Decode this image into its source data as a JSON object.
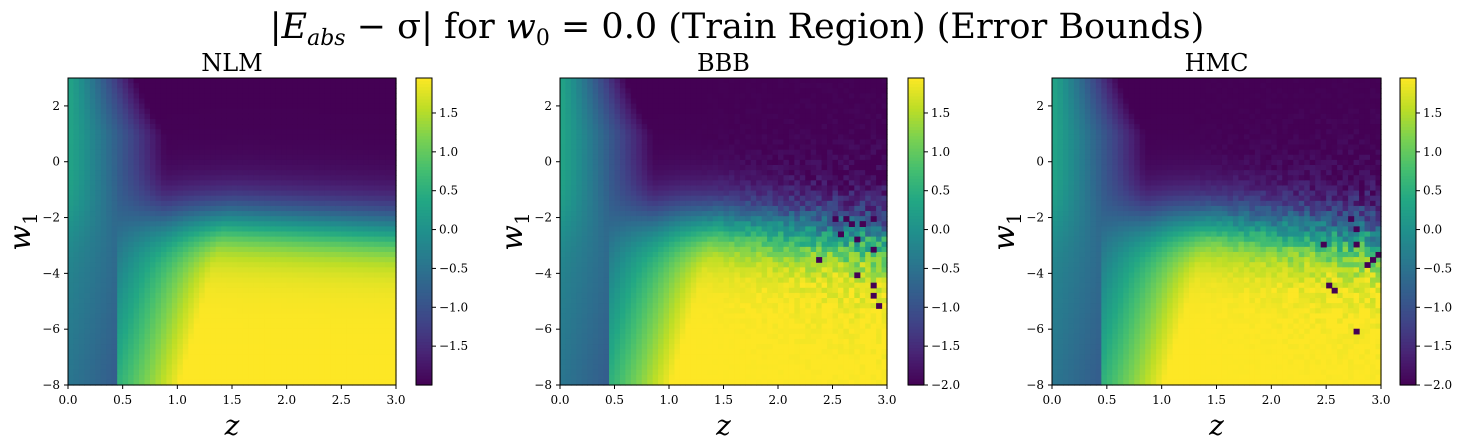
{
  "figure": {
    "title_parts": {
      "prefix": "|E",
      "sub_abs": "abs",
      "mid": " − σ| for ",
      "w": "w",
      "sub_0": "0",
      "suffix": " = 0.0 (Train Region) (Error Bounds)"
    }
  },
  "colormap": "viridis",
  "chart_data": [
    {
      "type": "heatmap",
      "title": "NLM",
      "xlabel": "z",
      "ylabel_base": "w",
      "ylabel_sub": "1",
      "xlim": [
        0.0,
        3.0
      ],
      "ylim": [
        -8,
        3
      ],
      "x_ticks": [
        0.0,
        0.5,
        1.0,
        1.5,
        2.0,
        2.5,
        3.0
      ],
      "x_tick_labels": [
        "0.0",
        "0.5",
        "1.0",
        "1.5",
        "2.0",
        "2.5",
        "3.0"
      ],
      "y_ticks": [
        2,
        0,
        -2,
        -4,
        -6,
        -8
      ],
      "y_tick_labels": [
        "2",
        "0",
        "−2",
        "−4",
        "−6",
        "−8"
      ],
      "colorbar": {
        "vmin": -2.0,
        "vmax": 1.95,
        "ticks": [
          1.5,
          1.0,
          0.5,
          0.0,
          -0.5,
          -1.0,
          -1.5
        ],
        "tick_labels": [
          "1.5",
          "1.0",
          "0.5",
          "0.0",
          "−0.5",
          "−1.0",
          "−1.5"
        ]
      },
      "grid": {
        "nx": 60,
        "ny": 60,
        "noise": 0.0,
        "outliers": []
      }
    },
    {
      "type": "heatmap",
      "title": "BBB",
      "xlabel": "z",
      "ylabel_base": "w",
      "ylabel_sub": "1",
      "xlim": [
        0.0,
        3.0
      ],
      "ylim": [
        -8,
        3
      ],
      "x_ticks": [
        0.0,
        0.5,
        1.0,
        1.5,
        2.0,
        2.5,
        3.0
      ],
      "x_tick_labels": [
        "0.0",
        "0.5",
        "1.0",
        "1.5",
        "2.0",
        "2.5",
        "3.0"
      ],
      "y_ticks": [
        2,
        0,
        -2,
        -4,
        -6,
        -8
      ],
      "y_tick_labels": [
        "2",
        "0",
        "−2",
        "−4",
        "−6",
        "−8"
      ],
      "colorbar": {
        "vmin": -2.0,
        "vmax": 1.95,
        "ticks": [
          1.5,
          1.0,
          0.5,
          0.0,
          -0.5,
          -1.0,
          -1.5,
          -2.0
        ],
        "tick_labels": [
          "1.5",
          "1.0",
          "0.5",
          "0.0",
          "−0.5",
          "−1.0",
          "−1.5",
          "−2.0"
        ]
      },
      "grid": {
        "nx": 60,
        "ny": 60,
        "noise": 0.9,
        "outliers": [
          [
            2.35,
            -3.45
          ],
          [
            2.55,
            -2.5
          ],
          [
            2.6,
            -2.05
          ],
          [
            2.65,
            -2.25
          ],
          [
            2.72,
            -2.7
          ],
          [
            2.72,
            -4.05
          ],
          [
            2.78,
            -2.15
          ],
          [
            2.8,
            -2.3
          ],
          [
            2.85,
            -3.1
          ],
          [
            2.85,
            -4.5
          ],
          [
            2.88,
            -1.95
          ],
          [
            2.88,
            -4.85
          ],
          [
            2.5,
            -1.95
          ],
          [
            2.9,
            -5.1
          ]
        ]
      }
    },
    {
      "type": "heatmap",
      "title": "HMC",
      "xlabel": "z",
      "ylabel_base": "w",
      "ylabel_sub": "1",
      "xlim": [
        0.0,
        3.0
      ],
      "ylim": [
        -8,
        3
      ],
      "x_ticks": [
        0.0,
        0.5,
        1.0,
        1.5,
        2.0,
        2.5,
        3.0
      ],
      "x_tick_labels": [
        "0.0",
        "0.5",
        "1.0",
        "1.5",
        "2.0",
        "2.5",
        "3.0"
      ],
      "y_ticks": [
        2,
        0,
        -2,
        -4,
        -6,
        -8
      ],
      "y_tick_labels": [
        "2",
        "0",
        "−2",
        "−4",
        "−6",
        "−8"
      ],
      "colorbar": {
        "vmin": -2.0,
        "vmax": 1.95,
        "ticks": [
          1.5,
          1.0,
          0.5,
          0.0,
          -0.5,
          -1.0,
          -1.5,
          -2.0
        ],
        "tick_labels": [
          "1.5",
          "1.0",
          "0.5",
          "0.0",
          "−0.5",
          "−1.0",
          "−1.5",
          "−2.0"
        ]
      },
      "grid": {
        "nx": 60,
        "ny": 60,
        "noise": 0.85,
        "outliers": [
          [
            2.45,
            -3.0
          ],
          [
            2.5,
            -4.4
          ],
          [
            2.75,
            -2.4
          ],
          [
            2.8,
            -3.0
          ],
          [
            2.8,
            -6.0
          ],
          [
            2.85,
            -3.75
          ],
          [
            2.9,
            -3.55
          ],
          [
            2.95,
            -3.35
          ],
          [
            2.55,
            -4.55
          ],
          [
            2.7,
            -2.1
          ]
        ]
      }
    }
  ]
}
